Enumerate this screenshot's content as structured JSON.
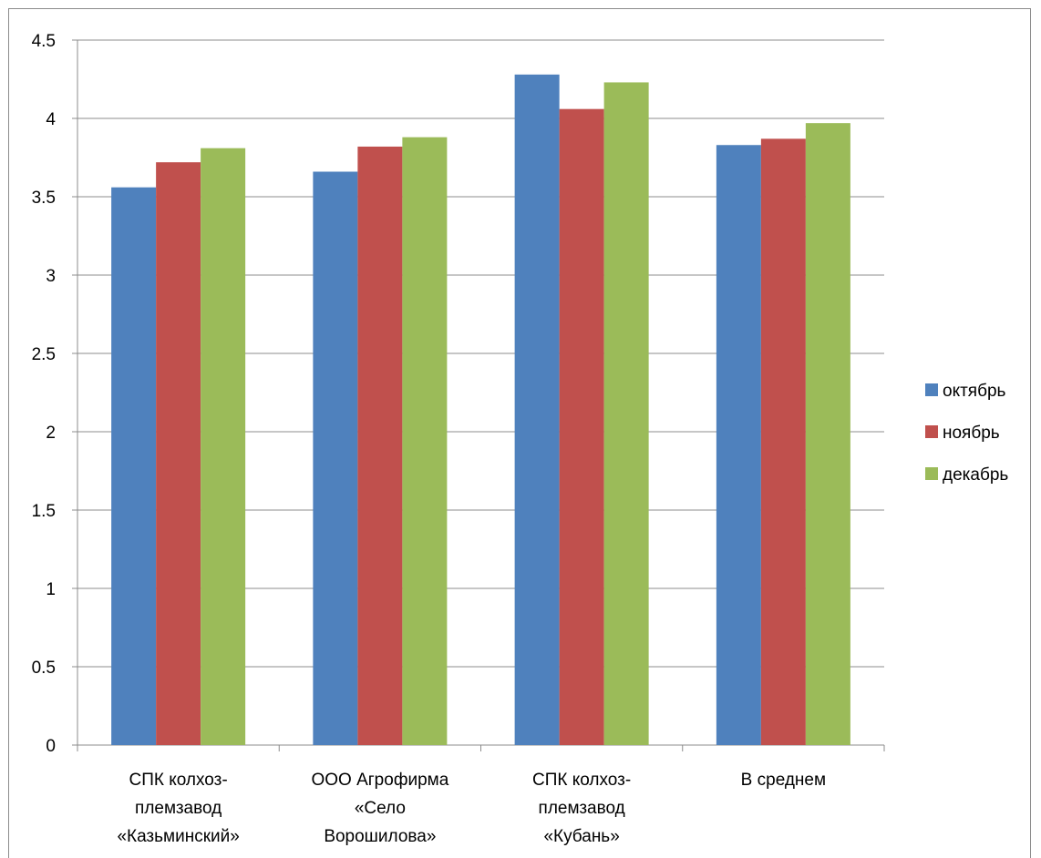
{
  "chart_data": {
    "type": "bar",
    "categories": [
      [
        "СПК колхоз-",
        "племзавод",
        "«Казьминский»"
      ],
      [
        "ООО Агрофирма",
        "«Село",
        "Ворошилова»"
      ],
      [
        "СПК колхоз-",
        "племзавод",
        "«Кубань»"
      ],
      [
        "В среднем"
      ]
    ],
    "series": [
      {
        "name": "октябрь",
        "color": "#4f81bd",
        "values": [
          3.56,
          3.66,
          4.28,
          3.83
        ]
      },
      {
        "name": "ноябрь",
        "color": "#c0504d",
        "values": [
          3.72,
          3.82,
          4.06,
          3.87
        ]
      },
      {
        "name": "декабрь",
        "color": "#9bbb59",
        "values": [
          3.81,
          3.88,
          4.23,
          3.97
        ]
      }
    ],
    "ylim": [
      0,
      4.5
    ],
    "yticks": [
      "0",
      "0.5",
      "1",
      "1.5",
      "2",
      "2.5",
      "3",
      "3.5",
      "4",
      "4.5"
    ],
    "grid": true,
    "legend_position": "right"
  }
}
